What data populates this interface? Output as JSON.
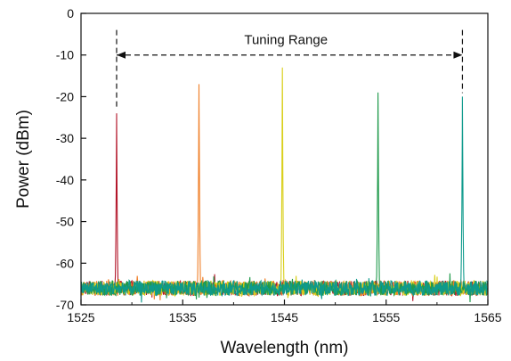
{
  "chart_data": {
    "type": "line",
    "xlabel": "Wavelength (nm)",
    "ylabel": "Power (dBm)",
    "xlim": [
      1525,
      1565
    ],
    "ylim": [
      -70,
      0
    ],
    "xticks": [
      1525,
      1535,
      1545,
      1555,
      1565
    ],
    "yticks": [
      0,
      -10,
      -20,
      -30,
      -40,
      -50,
      -60,
      -70
    ],
    "grid": false,
    "legend": "none",
    "noise_floor_dbm": -66,
    "annotation": {
      "text": "Tuning Range",
      "from_x": 1528.5,
      "to_x": 1562.5,
      "y": -10
    },
    "series": [
      {
        "color": "#b3162a",
        "peak_x": 1528.5,
        "peak_y": -24
      },
      {
        "color": "#f07f28",
        "peak_x": 1536.6,
        "peak_y": -17
      },
      {
        "color": "#d9cf1a",
        "peak_x": 1544.8,
        "peak_y": -13
      },
      {
        "color": "#1f9a4b",
        "peak_x": 1554.2,
        "peak_y": -19
      },
      {
        "color": "#0e9a8c",
        "peak_x": 1562.5,
        "peak_y": -20
      }
    ]
  }
}
